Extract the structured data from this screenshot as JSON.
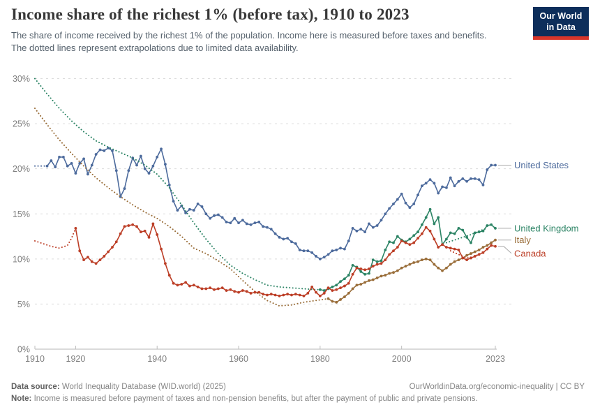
{
  "header": {
    "title": "Income share of the richest 1% (before tax), 1910 to 2023",
    "subtitle": "The share of income received by the richest 1% of the population. Income here is measured before taxes and benefits. The dotted lines represent extrapolations due to limited data availability."
  },
  "logo": {
    "line1": "Our World",
    "line2": "in Data",
    "navy": "#0d2e5b",
    "red": "#d8352a"
  },
  "footer": {
    "source_label": "Data source:",
    "source": " World Inequality Database (WID.world) (2025)",
    "permalink": "OurWorldinData.org/economic-inequality",
    "separator": " | ",
    "license": "CC BY",
    "note_label": "Note:",
    "note": " Income is measured before payment of taxes and non-pension benefits, but after the payment of public and private pensions."
  },
  "chart_data": {
    "type": "line",
    "title": "Income share of the richest 1% (before tax), 1910 to 2023",
    "x_range": [
      1910,
      2023
    ],
    "y_range": [
      0,
      30
    ],
    "x_ticks": [
      1910,
      1920,
      1940,
      1960,
      1980,
      2000,
      2023
    ],
    "y_ticks": [
      0,
      5,
      10,
      15,
      20,
      25,
      30
    ],
    "y_tick_suffix": "%",
    "grid": "dashed-horizontal",
    "legend_position": "right-of-line-ends",
    "note": "dotted segments are extrapolations due to limited data availability",
    "series": [
      {
        "name": "United States",
        "key": "united-states",
        "color": "#4C6A9C",
        "label_dy": 0,
        "segments": [
          {
            "style": "dotted",
            "years": [
              1910,
              1913
            ],
            "values": [
              20.3,
              20.3
            ]
          },
          {
            "style": "solid",
            "start_year": 1913,
            "values": [
              20.3,
              20.9,
              20.2,
              21.3,
              21.3,
              20.3,
              20.6,
              19.5,
              20.6,
              21.1,
              19.4,
              20.4,
              21.6,
              22.1,
              22.0,
              22.3,
              22.0,
              19.8,
              16.9,
              17.8,
              19.8,
              21.2,
              20.4,
              21.4,
              20.0,
              19.5,
              20.3,
              21.3,
              22.2,
              20.5,
              18.2,
              16.4,
              15.4,
              15.9,
              15.1,
              15.5,
              15.4,
              16.1,
              15.8,
              15.0,
              14.5,
              14.8,
              14.9,
              14.6,
              14.1,
              14.0,
              14.5,
              14.0,
              14.3,
              13.9,
              13.8,
              14.0,
              14.1,
              13.6,
              13.5,
              13.3,
              12.8,
              12.4,
              12.2,
              12.3,
              11.9,
              11.7,
              11.0,
              10.9,
              10.9,
              10.7,
              10.3,
              10.0,
              10.2,
              10.5,
              10.9,
              11.0,
              11.2,
              11.1,
              12.0,
              13.4,
              13.1,
              13.3,
              13.0,
              13.9,
              13.5,
              13.7,
              14.3,
              15.0,
              15.6,
              16.1,
              16.6,
              17.2,
              16.2,
              15.7,
              16.1,
              17.1,
              18.1,
              18.4,
              18.8,
              18.4,
              17.3,
              18.0,
              17.9,
              19.0,
              18.1,
              18.6,
              18.9,
              18.6,
              18.9,
              18.9,
              18.8,
              18.2,
              19.9,
              20.4,
              20.4
            ]
          }
        ]
      },
      {
        "name": "United Kingdom",
        "key": "united-kingdom",
        "color": "#2C8465",
        "label_dy": 0,
        "segments": [
          {
            "style": "dotted",
            "years": [
              1910,
              1913,
              1916,
              1919,
              1922,
              1925,
              1928,
              1931,
              1934,
              1937,
              1940,
              1943,
              1946,
              1949,
              1952,
              1955,
              1958,
              1961,
              1964,
              1967,
              1970,
              1973,
              1976,
              1979,
              1980
            ],
            "values": [
              30.0,
              28.3,
              26.7,
              25.3,
              24.1,
              23.1,
              22.4,
              21.8,
              21.2,
              20.4,
              19.4,
              17.9,
              16.0,
              14.0,
              12.2,
              10.6,
              9.3,
              8.4,
              7.7,
              7.1,
              6.9,
              6.8,
              6.7,
              6.6,
              6.6
            ]
          },
          {
            "style": "solid",
            "start_year": 1980,
            "values": [
              6.6,
              6.5,
              6.7,
              6.9,
              7.1,
              7.5,
              7.8,
              8.2,
              9.3,
              9.1,
              8.6,
              8.3,
              8.4,
              9.9,
              9.7,
              9.8,
              11.0,
              11.9,
              11.8,
              12.5,
              12.1,
              11.9,
              12.2,
              12.6,
              13.0,
              13.8,
              14.6,
              15.5,
              13.9,
              14.6,
              11.6,
              12.2,
              12.9,
              12.8,
              13.4,
              13.2,
              12.4,
              11.8,
              12.9,
              13.0,
              13.1,
              13.7,
              13.8,
              13.4
            ]
          },
          {
            "style": "dotted",
            "years": [
              2011,
              2013,
              2015,
              2017,
              2019,
              2021
            ],
            "values": [
              11.8,
              12.1,
              12.4,
              12.7,
              13.1,
              13.4
            ]
          }
        ]
      },
      {
        "name": "Italy",
        "key": "italy",
        "color": "#996D39",
        "label_dy": 0,
        "segments": [
          {
            "style": "dotted",
            "years": [
              1910,
              1913,
              1916,
              1919,
              1922,
              1925,
              1928,
              1931,
              1934,
              1937,
              1940,
              1943,
              1946,
              1949,
              1952,
              1955,
              1958,
              1961,
              1964,
              1967,
              1970,
              1973,
              1976,
              1979,
              1982
            ],
            "values": [
              26.7,
              24.9,
              23.2,
              21.7,
              20.3,
              19.0,
              17.9,
              16.9,
              16.0,
              15.2,
              14.5,
              13.6,
              12.5,
              11.2,
              10.6,
              9.8,
              8.9,
              7.6,
              6.4,
              5.4,
              4.8,
              4.9,
              5.2,
              5.4,
              5.6
            ]
          },
          {
            "style": "solid",
            "start_year": 1982,
            "values": [
              5.6,
              5.3,
              5.2,
              5.5,
              5.8,
              6.2,
              6.7,
              7.1,
              7.2,
              7.4,
              7.6,
              7.7,
              7.9,
              8.1,
              8.2,
              8.4,
              8.5,
              8.7,
              9.0,
              9.2,
              9.4,
              9.6,
              9.7,
              9.9,
              10.0,
              9.9,
              9.4,
              9.0,
              8.7,
              9.0,
              9.4,
              9.7,
              9.9,
              10.1,
              10.4,
              10.6,
              10.8,
              11.0,
              11.3,
              11.5,
              11.8,
              12.1
            ]
          }
        ]
      },
      {
        "name": "Canada",
        "key": "canada",
        "color": "#BC3E26",
        "label_dy": 10,
        "segments": [
          {
            "style": "dotted",
            "years": [
              1910,
              1912,
              1914,
              1916,
              1918,
              1919,
              1920
            ],
            "values": [
              12.0,
              11.7,
              11.4,
              11.2,
              11.5,
              12.3,
              13.4
            ]
          },
          {
            "style": "solid",
            "start_year": 1920,
            "values": [
              13.4,
              10.9,
              9.9,
              10.2,
              9.7,
              9.5,
              9.9,
              10.3,
              10.8,
              11.3,
              11.9,
              12.8,
              13.6,
              13.7,
              13.8,
              13.6,
              13.0,
              13.1,
              12.4,
              13.9,
              12.7,
              11.1,
              9.5,
              8.2,
              7.3,
              7.1,
              7.2,
              7.4,
              7.0,
              7.1,
              6.9,
              6.7,
              6.7,
              6.8,
              6.6,
              6.7,
              6.8,
              6.5,
              6.6,
              6.4,
              6.3,
              6.5,
              6.4,
              6.2,
              6.3,
              6.3,
              6.1,
              6.0,
              6.1,
              6.0,
              5.9,
              6.0,
              6.1,
              6.0,
              6.1,
              6.0,
              5.9,
              6.2,
              6.9,
              6.3,
              5.9,
              6.2,
              6.8,
              6.5,
              6.6,
              6.8,
              7.0,
              7.3,
              8.3,
              9.0,
              8.9,
              8.8,
              8.9,
              9.2,
              9.4,
              9.5,
              9.9,
              10.5,
              10.9,
              11.3,
              12.0,
              11.8,
              11.6,
              11.8,
              12.3,
              12.8,
              13.5,
              13.1,
              12.2,
              11.3,
              11.6,
              11.3,
              11.2,
              11.1,
              11.0,
              10.1,
              9.9,
              10.1,
              10.3,
              10.5,
              10.7,
              11.1,
              11.5,
              11.4
            ]
          },
          {
            "style": "dotted",
            "years": [
              2012,
              2014,
              2016,
              2018,
              2020
            ],
            "values": [
              10.9,
              10.5,
              10.1,
              10.3,
              10.8
            ]
          }
        ]
      }
    ]
  }
}
